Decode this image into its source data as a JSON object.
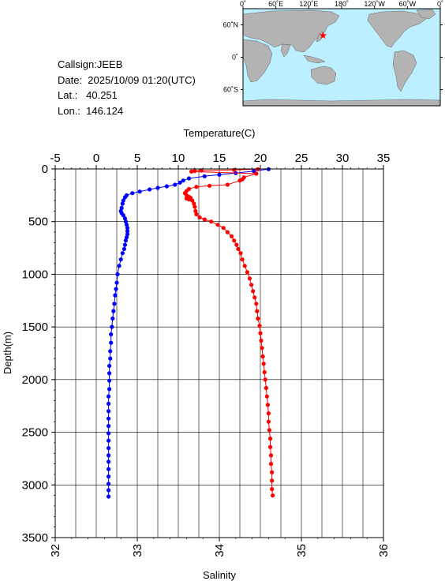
{
  "info": {
    "callsign": "Callsign:JEEB",
    "date": "Date:  2025/10/09 01:20(UTC)",
    "lat": "Lat.:   40.251",
    "lon": "Lon.:  146.124"
  },
  "map": {
    "lon_ticks": [
      "0˚",
      "60˚E",
      "120˚E",
      "180˚",
      "120˚W",
      "60˚W",
      "0˚"
    ],
    "lat_ticks": [
      "60˚N",
      "0˚",
      "60˚S"
    ],
    "station": {
      "lon": 146.124,
      "lat": 40.251
    },
    "colors": {
      "ocean": "#bcefff",
      "land": "#b3b3b3",
      "marker": "#ff0000"
    }
  },
  "chart_data": {
    "type": "line",
    "xlabel_top": "Temperature(C)",
    "xlabel_bottom": "Salinity",
    "ylabel": "Depth(m)",
    "temperature_axis": {
      "range": [
        -5,
        35
      ],
      "ticks": [
        "-5",
        "0",
        "5",
        "10",
        "15",
        "20",
        "25",
        "30",
        "35"
      ]
    },
    "salinity_axis": {
      "range": [
        32,
        36
      ],
      "ticks": [
        "32",
        "33",
        "34",
        "35",
        "36"
      ]
    },
    "depth_axis": {
      "range": [
        0,
        3500
      ],
      "inverted": true,
      "ticks": [
        "0",
        "500",
        "1000",
        "1500",
        "2000",
        "2500",
        "3000",
        "3500"
      ]
    },
    "grid": true,
    "series": [
      {
        "axis": "temperature",
        "color": "#0000ff",
        "points": [
          [
            21.0,
            2
          ],
          [
            19.2,
            20
          ],
          [
            17.0,
            40
          ],
          [
            15.0,
            55
          ],
          [
            13.2,
            70
          ],
          [
            11.3,
            90
          ],
          [
            10.6,
            110
          ],
          [
            10.2,
            130
          ],
          [
            9.6,
            150
          ],
          [
            8.6,
            165
          ],
          [
            7.5,
            180
          ],
          [
            6.5,
            195
          ],
          [
            5.3,
            215
          ],
          [
            4.4,
            230
          ],
          [
            3.7,
            250
          ],
          [
            3.5,
            270
          ],
          [
            3.3,
            300
          ],
          [
            3.2,
            330
          ],
          [
            3.1,
            370
          ],
          [
            3.0,
            400
          ],
          [
            3.1,
            420
          ],
          [
            3.3,
            440
          ],
          [
            3.5,
            470
          ],
          [
            3.6,
            500
          ],
          [
            3.7,
            530
          ],
          [
            3.8,
            560
          ],
          [
            3.8,
            590
          ],
          [
            3.8,
            620
          ],
          [
            3.7,
            650
          ],
          [
            3.6,
            680
          ],
          [
            3.5,
            720
          ],
          [
            3.4,
            760
          ],
          [
            3.2,
            800
          ],
          [
            3.0,
            860
          ],
          [
            2.8,
            920
          ],
          [
            2.6,
            1000
          ],
          [
            2.5,
            1080
          ],
          [
            2.4,
            1140
          ],
          [
            2.3,
            1200
          ],
          [
            2.2,
            1280
          ],
          [
            2.1,
            1350
          ],
          [
            2.0,
            1420
          ],
          [
            1.9,
            1500
          ],
          [
            1.8,
            1570
          ],
          [
            1.8,
            1650
          ],
          [
            1.7,
            1730
          ],
          [
            1.7,
            1800
          ],
          [
            1.6,
            1870
          ],
          [
            1.6,
            1940
          ],
          [
            1.6,
            2010
          ],
          [
            1.6,
            2090
          ],
          [
            1.5,
            2160
          ],
          [
            1.5,
            2230
          ],
          [
            1.5,
            2300
          ],
          [
            1.5,
            2370
          ],
          [
            1.5,
            2440
          ],
          [
            1.5,
            2510
          ],
          [
            1.5,
            2580
          ],
          [
            1.5,
            2650
          ],
          [
            1.5,
            2720
          ],
          [
            1.5,
            2780
          ],
          [
            1.5,
            2850
          ],
          [
            1.5,
            2920
          ],
          [
            1.5,
            2990
          ],
          [
            1.5,
            3050
          ],
          [
            1.5,
            3110
          ]
        ]
      },
      {
        "axis": "salinity",
        "color": "#ff0000",
        "points": [
          [
            34.47,
            2
          ],
          [
            34.18,
            10
          ],
          [
            33.78,
            15
          ],
          [
            33.7,
            20
          ],
          [
            33.66,
            25
          ],
          [
            34.45,
            45
          ],
          [
            34.3,
            80
          ],
          [
            34.28,
            100
          ],
          [
            34.25,
            110
          ],
          [
            34.1,
            150
          ],
          [
            33.88,
            160
          ],
          [
            33.72,
            170
          ],
          [
            33.63,
            190
          ],
          [
            33.6,
            210
          ],
          [
            33.58,
            230
          ],
          [
            33.6,
            250
          ],
          [
            33.63,
            265
          ],
          [
            33.65,
            275
          ],
          [
            33.6,
            280
          ],
          [
            33.63,
            290
          ],
          [
            33.67,
            300
          ],
          [
            33.69,
            330
          ],
          [
            33.7,
            360
          ],
          [
            33.71,
            400
          ],
          [
            33.72,
            430
          ],
          [
            33.76,
            460
          ],
          [
            33.82,
            480
          ],
          [
            33.9,
            500
          ],
          [
            33.98,
            530
          ],
          [
            34.05,
            560
          ],
          [
            34.1,
            600
          ],
          [
            34.15,
            640
          ],
          [
            34.18,
            680
          ],
          [
            34.21,
            720
          ],
          [
            34.23,
            760
          ],
          [
            34.26,
            800
          ],
          [
            34.28,
            860
          ],
          [
            34.31,
            920
          ],
          [
            34.34,
            980
          ],
          [
            34.37,
            1040
          ],
          [
            34.39,
            1100
          ],
          [
            34.41,
            1160
          ],
          [
            34.43,
            1220
          ],
          [
            34.45,
            1280
          ],
          [
            34.46,
            1350
          ],
          [
            34.47,
            1420
          ],
          [
            34.49,
            1490
          ],
          [
            34.5,
            1560
          ],
          [
            34.51,
            1630
          ],
          [
            34.52,
            1700
          ],
          [
            34.53,
            1780
          ],
          [
            34.54,
            1850
          ],
          [
            34.55,
            1930
          ],
          [
            34.56,
            2000
          ],
          [
            34.57,
            2080
          ],
          [
            34.58,
            2160
          ],
          [
            34.59,
            2240
          ],
          [
            34.6,
            2320
          ],
          [
            34.6,
            2400
          ],
          [
            34.61,
            2480
          ],
          [
            34.62,
            2560
          ],
          [
            34.62,
            2640
          ],
          [
            34.63,
            2720
          ],
          [
            34.63,
            2800
          ],
          [
            34.64,
            2880
          ],
          [
            34.64,
            2960
          ],
          [
            34.64,
            3040
          ],
          [
            34.65,
            3100
          ]
        ]
      }
    ]
  }
}
